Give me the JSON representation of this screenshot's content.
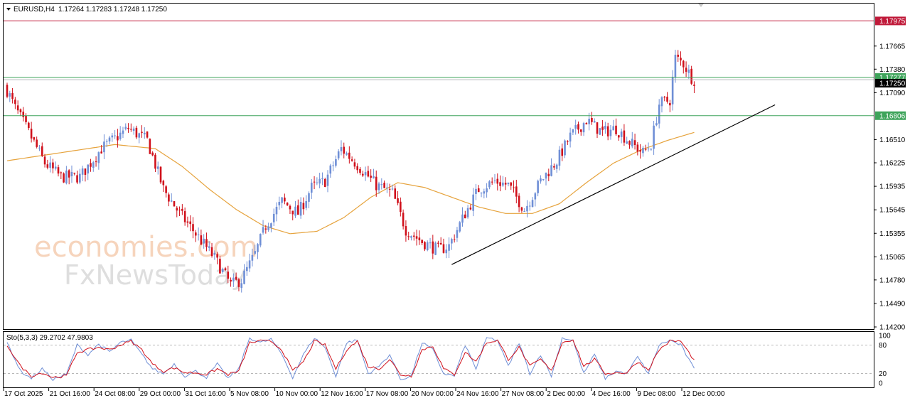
{
  "header": {
    "symbol": "EURUSD,H4",
    "ohlc": "1.17264 1.17283 1.17248 1.17250"
  },
  "watermark": {
    "line1": "economies.com",
    "line2": "FxNewsToday"
  },
  "colors": {
    "bull": "#6f8fd6",
    "bear": "#d0101b",
    "ma": "#e6a33d",
    "resistance": "#b3102c",
    "support": "#3fa45b",
    "trendline": "#000000",
    "stoch_main": "#6f8fd6",
    "stoch_signal": "#d0101b"
  },
  "price_levels": [
    {
      "name": "resistance-line",
      "value": 1.17975,
      "label": "1.17975",
      "color": "#c01a3a"
    },
    {
      "name": "current-level",
      "value": 1.17277,
      "label": "1.17277",
      "color": "#3fa45b"
    },
    {
      "name": "current-price",
      "value": 1.1725,
      "label": "1.17250",
      "color": "#000000"
    },
    {
      "name": "support-line",
      "value": 1.16806,
      "label": "1.16806",
      "color": "#3fa45b"
    }
  ],
  "chart_data": {
    "type": "candlestick",
    "timeframe": "H4",
    "ylim": [
      1.142,
      1.1797
    ],
    "y_ticks": [
      "1.17665",
      "1.17380",
      "1.17090",
      "1.16510",
      "1.16225",
      "1.15935",
      "1.15645",
      "1.15355",
      "1.15065",
      "1.14780",
      "1.14490",
      "1.14200"
    ],
    "x_ticks": [
      "17 Oct 2025",
      "21 Oct 16:00",
      "24 Oct 08:00",
      "29 Oct 00:00",
      "31 Oct 16:00",
      "5 Nov 08:00",
      "10 Nov 00:00",
      "12 Nov 16:00",
      "17 Nov 08:00",
      "20 Nov 00:00",
      "24 Nov 16:00",
      "27 Nov 08:00",
      "2 Dec 00:00",
      "4 Dec 16:00",
      "9 Dec 08:00",
      "12 Dec 00:00"
    ],
    "close_anchors": [
      [
        0,
        1.1712
      ],
      [
        3,
        1.169
      ],
      [
        8,
        1.166
      ],
      [
        14,
        1.1622
      ],
      [
        20,
        1.1605
      ],
      [
        27,
        1.1605
      ],
      [
        35,
        1.164
      ],
      [
        45,
        1.1665
      ],
      [
        52,
        1.165
      ],
      [
        58,
        1.159
      ],
      [
        64,
        1.156
      ],
      [
        70,
        1.1535
      ],
      [
        77,
        1.1505
      ],
      [
        83,
        1.1472
      ],
      [
        87,
        1.1478
      ],
      [
        92,
        1.151
      ],
      [
        96,
        1.1545
      ],
      [
        102,
        1.1575
      ],
      [
        108,
        1.156
      ],
      [
        113,
        1.1592
      ],
      [
        118,
        1.16
      ],
      [
        124,
        1.164
      ],
      [
        130,
        1.162
      ],
      [
        137,
        1.1595
      ],
      [
        143,
        1.1585
      ],
      [
        148,
        1.154
      ],
      [
        154,
        1.1525
      ],
      [
        160,
        1.1515
      ],
      [
        164,
        1.152
      ],
      [
        170,
        1.156
      ],
      [
        175,
        1.159
      ],
      [
        181,
        1.16
      ],
      [
        186,
        1.1595
      ],
      [
        192,
        1.1565
      ],
      [
        198,
        1.16
      ],
      [
        204,
        1.1625
      ],
      [
        209,
        1.1655
      ],
      [
        215,
        1.1675
      ],
      [
        221,
        1.166
      ],
      [
        226,
        1.1665
      ],
      [
        231,
        1.1648
      ],
      [
        236,
        1.1635
      ],
      [
        239,
        1.1645
      ],
      [
        242,
        1.1695
      ],
      [
        246,
        1.17
      ],
      [
        248,
        1.1752
      ],
      [
        251,
        1.1745
      ],
      [
        254,
        1.1728
      ],
      [
        255,
        1.1725
      ]
    ],
    "moving_average_anchors": [
      [
        0,
        1.1625
      ],
      [
        20,
        1.1635
      ],
      [
        40,
        1.1645
      ],
      [
        55,
        1.164
      ],
      [
        65,
        1.1618
      ],
      [
        75,
        1.159
      ],
      [
        85,
        1.1565
      ],
      [
        95,
        1.1545
      ],
      [
        105,
        1.1535
      ],
      [
        115,
        1.1538
      ],
      [
        125,
        1.1555
      ],
      [
        135,
        1.158
      ],
      [
        145,
        1.1598
      ],
      [
        155,
        1.1592
      ],
      [
        165,
        1.158
      ],
      [
        175,
        1.1568
      ],
      [
        185,
        1.156
      ],
      [
        195,
        1.156
      ],
      [
        205,
        1.1572
      ],
      [
        215,
        1.1598
      ],
      [
        225,
        1.1622
      ],
      [
        235,
        1.1638
      ],
      [
        245,
        1.165
      ],
      [
        255,
        1.166
      ]
    ],
    "trendline": [
      [
        165,
        1.1497
      ],
      [
        285,
        1.1694
      ]
    ],
    "candle_count": 256,
    "stochastic": {
      "label": "Sto(5,3,3) 29.2702 47.9803",
      "ylim": [
        0,
        100
      ],
      "levels": [
        "80",
        "20"
      ],
      "axis_labels": [
        "100",
        "80",
        "20",
        "0"
      ],
      "main_anchors": [
        [
          0,
          85
        ],
        [
          5,
          25
        ],
        [
          9,
          10
        ],
        [
          13,
          30
        ],
        [
          17,
          8
        ],
        [
          22,
          18
        ],
        [
          26,
          80
        ],
        [
          30,
          60
        ],
        [
          34,
          82
        ],
        [
          38,
          65
        ],
        [
          42,
          85
        ],
        [
          46,
          90
        ],
        [
          50,
          60
        ],
        [
          54,
          30
        ],
        [
          58,
          20
        ],
        [
          62,
          40
        ],
        [
          66,
          15
        ],
        [
          70,
          25
        ],
        [
          74,
          12
        ],
        [
          78,
          40
        ],
        [
          82,
          10
        ],
        [
          86,
          30
        ],
        [
          90,
          95
        ],
        [
          94,
          85
        ],
        [
          98,
          92
        ],
        [
          102,
          60
        ],
        [
          106,
          12
        ],
        [
          110,
          60
        ],
        [
          114,
          95
        ],
        [
          118,
          75
        ],
        [
          122,
          15
        ],
        [
          126,
          85
        ],
        [
          130,
          90
        ],
        [
          134,
          20
        ],
        [
          138,
          35
        ],
        [
          142,
          60
        ],
        [
          146,
          8
        ],
        [
          150,
          15
        ],
        [
          154,
          85
        ],
        [
          158,
          70
        ],
        [
          162,
          20
        ],
        [
          166,
          15
        ],
        [
          170,
          80
        ],
        [
          174,
          30
        ],
        [
          178,
          95
        ],
        [
          182,
          90
        ],
        [
          186,
          35
        ],
        [
          190,
          85
        ],
        [
          194,
          20
        ],
        [
          198,
          60
        ],
        [
          202,
          15
        ],
        [
          206,
          95
        ],
        [
          210,
          90
        ],
        [
          214,
          20
        ],
        [
          218,
          60
        ],
        [
          222,
          10
        ],
        [
          226,
          25
        ],
        [
          230,
          20
        ],
        [
          234,
          55
        ],
        [
          238,
          20
        ],
        [
          242,
          80
        ],
        [
          246,
          90
        ],
        [
          250,
          80
        ],
        [
          255,
          29
        ]
      ],
      "signal_anchors": [
        [
          0,
          80
        ],
        [
          5,
          35
        ],
        [
          9,
          15
        ],
        [
          13,
          22
        ],
        [
          17,
          12
        ],
        [
          22,
          15
        ],
        [
          26,
          65
        ],
        [
          30,
          70
        ],
        [
          34,
          75
        ],
        [
          38,
          70
        ],
        [
          42,
          80
        ],
        [
          46,
          88
        ],
        [
          50,
          70
        ],
        [
          54,
          40
        ],
        [
          58,
          25
        ],
        [
          62,
          32
        ],
        [
          66,
          22
        ],
        [
          70,
          22
        ],
        [
          74,
          18
        ],
        [
          78,
          30
        ],
        [
          82,
          18
        ],
        [
          86,
          25
        ],
        [
          90,
          85
        ],
        [
          94,
          88
        ],
        [
          98,
          88
        ],
        [
          102,
          70
        ],
        [
          106,
          25
        ],
        [
          110,
          45
        ],
        [
          114,
          88
        ],
        [
          118,
          80
        ],
        [
          122,
          30
        ],
        [
          126,
          70
        ],
        [
          130,
          88
        ],
        [
          134,
          35
        ],
        [
          138,
          30
        ],
        [
          142,
          50
        ],
        [
          146,
          18
        ],
        [
          150,
          15
        ],
        [
          154,
          70
        ],
        [
          158,
          78
        ],
        [
          162,
          30
        ],
        [
          166,
          18
        ],
        [
          170,
          65
        ],
        [
          174,
          45
        ],
        [
          178,
          85
        ],
        [
          182,
          90
        ],
        [
          186,
          50
        ],
        [
          190,
          75
        ],
        [
          194,
          35
        ],
        [
          198,
          50
        ],
        [
          202,
          25
        ],
        [
          206,
          85
        ],
        [
          210,
          92
        ],
        [
          214,
          35
        ],
        [
          218,
          50
        ],
        [
          222,
          20
        ],
        [
          226,
          22
        ],
        [
          230,
          22
        ],
        [
          234,
          45
        ],
        [
          238,
          28
        ],
        [
          242,
          70
        ],
        [
          246,
          88
        ],
        [
          250,
          88
        ],
        [
          255,
          48
        ]
      ]
    }
  }
}
